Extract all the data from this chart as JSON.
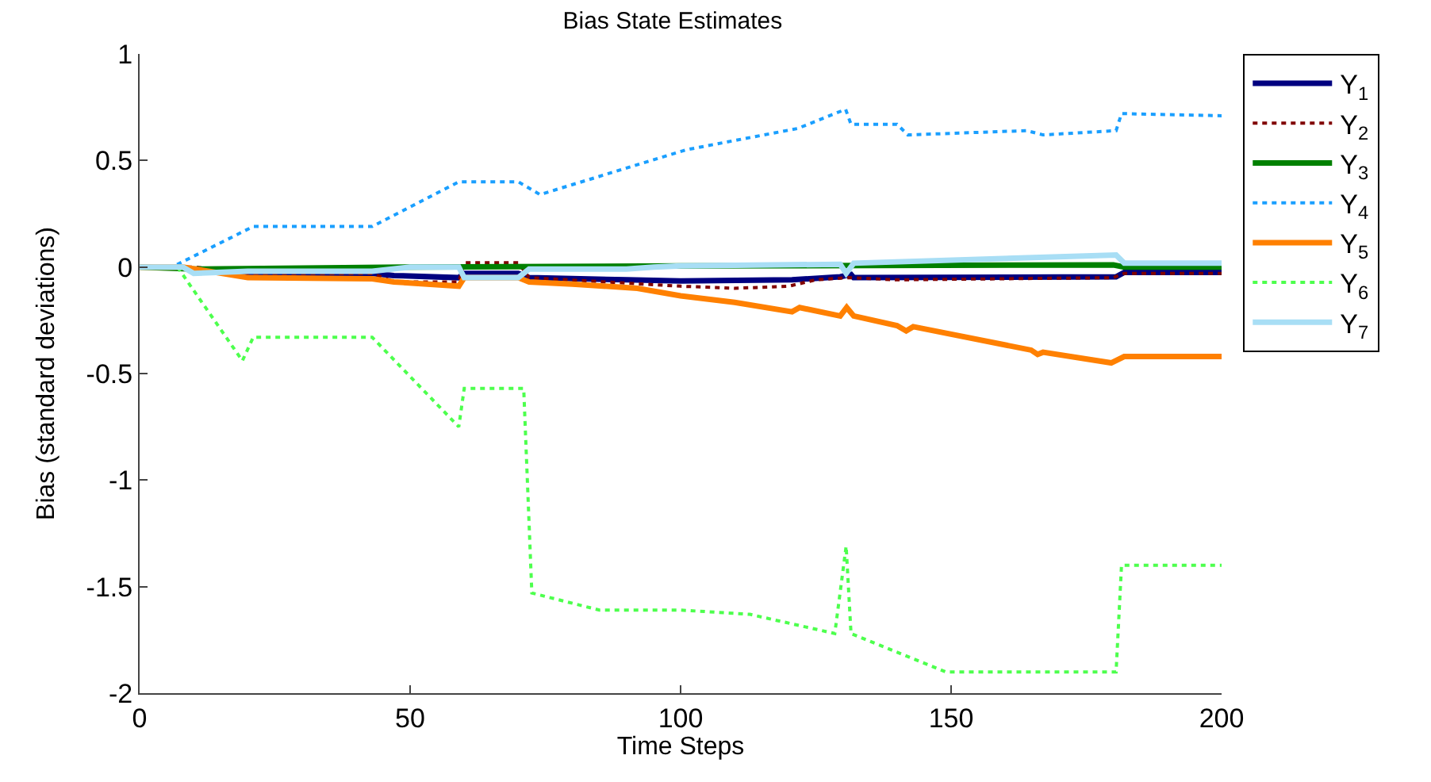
{
  "chart_data": {
    "type": "line",
    "title": "Bias State Estimates",
    "xlabel": "Time Steps",
    "ylabel": "Bias (standard deviations)",
    "xlim": [
      0,
      200
    ],
    "ylim": [
      -2,
      1
    ],
    "xticks": [
      0,
      50,
      100,
      150,
      200
    ],
    "yticks": [
      -2,
      -1.5,
      -1,
      -0.5,
      0,
      0.5,
      1
    ],
    "legend": "top right",
    "marker": "none",
    "series": [
      {
        "name": "Y$_{1}$",
        "color": "#000080",
        "line_style": "solid",
        "x": [
          10,
          20,
          43,
          47,
          59,
          60,
          70,
          72,
          90,
          100,
          120.6,
          129.5,
          131.5,
          132,
          180.5,
          182,
          200
        ],
        "values": [
          -0.02,
          -0.03,
          -0.03,
          -0.04,
          -0.05,
          -0.03,
          -0.03,
          -0.05,
          -0.06,
          -0.065,
          -0.06,
          -0.046,
          -0.035,
          -0.05,
          -0.046,
          -0.025,
          -0.025
        ]
      },
      {
        "name": "Y$_{2}$",
        "color": "#800000",
        "line_style": "dotted",
        "x": [
          0,
          10,
          20,
          43,
          47,
          59,
          60,
          70,
          72,
          100,
          110,
          120,
          125,
          131,
          140,
          180,
          182,
          200
        ],
        "values": [
          0,
          0,
          -0.03,
          -0.03,
          -0.07,
          -0.07,
          0.02,
          0.02,
          -0.05,
          -0.09,
          -0.1,
          -0.09,
          -0.06,
          -0.05,
          -0.06,
          -0.05,
          -0.03,
          -0.03
        ]
      },
      {
        "name": "Y$_{3}$",
        "color": "#008000",
        "line_style": "solid",
        "x": [
          0,
          10,
          50,
          100,
          180,
          182,
          200
        ],
        "values": [
          0,
          -0.01,
          0,
          0.005,
          0.01,
          0,
          0
        ]
      },
      {
        "name": "Y$_{4}$",
        "color": "#1a9fff",
        "line_style": "dotted",
        "x": [
          0,
          6,
          21,
          43,
          59,
          70,
          74,
          101,
          121.6,
          130.5,
          131.5,
          140,
          142,
          164,
          167,
          180.5,
          181.5,
          200
        ],
        "values": [
          0,
          0,
          0.19,
          0.19,
          0.4,
          0.4,
          0.34,
          0.55,
          0.65,
          0.74,
          0.67,
          0.67,
          0.62,
          0.64,
          0.62,
          0.64,
          0.72,
          0.71
        ]
      },
      {
        "name": "Y$_{5}$",
        "color": "#ff8000",
        "line_style": "solid",
        "x": [
          0,
          8,
          20,
          43,
          47,
          59,
          60,
          70,
          72,
          80,
          92,
          100,
          110,
          120.6,
          122,
          129.5,
          130.7,
          132,
          140,
          141.7,
          143,
          164.8,
          166,
          167,
          179.6,
          182,
          200
        ],
        "values": [
          0,
          0,
          -0.05,
          -0.055,
          -0.07,
          -0.09,
          -0.05,
          -0.05,
          -0.07,
          -0.08,
          -0.1,
          -0.135,
          -0.166,
          -0.21,
          -0.19,
          -0.23,
          -0.19,
          -0.23,
          -0.275,
          -0.3,
          -0.28,
          -0.39,
          -0.41,
          -0.4,
          -0.45,
          -0.42,
          -0.42
        ]
      },
      {
        "name": "Y$_{6}$",
        "color": "#4dff4d",
        "line_style": "dotted",
        "x": [
          0,
          7,
          19,
          21,
          43,
          59,
          60,
          71,
          72.5,
          85,
          100,
          112.8,
          128.5,
          130.6,
          131.5,
          149,
          180.5,
          181.5,
          200
        ],
        "values": [
          0,
          0,
          -0.44,
          -0.33,
          -0.33,
          -0.75,
          -0.57,
          -0.57,
          -1.53,
          -1.61,
          -1.61,
          -1.63,
          -1.72,
          -1.31,
          -1.72,
          -1.9,
          -1.9,
          -1.4,
          -1.4
        ]
      },
      {
        "name": "Y$_{7}$",
        "color": "#a8def5",
        "line_style": "solid",
        "x": [
          0,
          8,
          10,
          20,
          43,
          50,
          59,
          60,
          70,
          72,
          90,
          95,
          100,
          129.5,
          130.6,
          132,
          180.5,
          182,
          200
        ],
        "values": [
          0,
          0,
          -0.03,
          -0.02,
          -0.02,
          0,
          0,
          -0.05,
          -0.05,
          -0.01,
          -0.01,
          0,
          0.005,
          0.013,
          -0.03,
          0.018,
          0.056,
          0.018,
          0.018
        ]
      }
    ]
  }
}
